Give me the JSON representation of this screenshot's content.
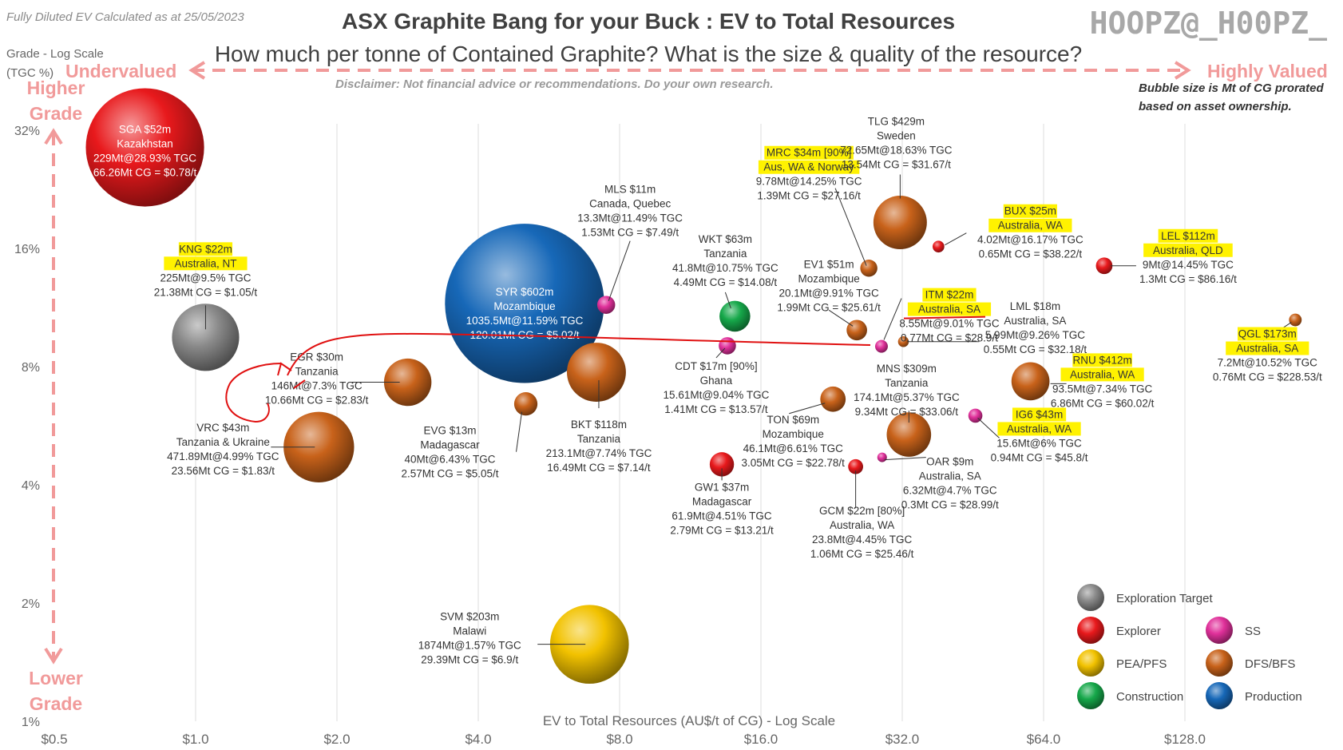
{
  "header": {
    "fd_note": "Fully Diluted EV Calculated as at 25/05/2023",
    "title": "ASX Graphite Bang for your Buck : EV to Total Resources",
    "subtitle": "How much per tonne of Contained Graphite? What is the size & quality of the resource?",
    "handle": "HOOPZ@_H00PZ_",
    "disclaimer": "Disclaimer: Not financial advice or recommendations. Do your own research.",
    "bubble_note_1": "Bubble size is Mt of CG prorated",
    "bubble_note_2": "based on asset ownership."
  },
  "guides": {
    "undervalued": "Undervalued",
    "highly_valued": "Highly Valued",
    "higher_grade_1": "Higher",
    "higher_grade_2": "Grade",
    "lower_grade_1": "Lower",
    "lower_grade_2": "Grade"
  },
  "colors": {
    "Exploration Target": "#8a8a8a",
    "Explorer": "#e8191c",
    "PEA/PFS": "#f2c200",
    "Construction": "#16a84a",
    "SS": "#e0309a",
    "DFS/BFS": "#c8621a",
    "Production": "#1768b8",
    "guide": "#f19a9a",
    "highlight": "#fff200",
    "annotation": "#e01010"
  },
  "chart_data": {
    "type": "scatter",
    "title": "ASX Graphite Bang for your Buck : EV to Total Resources",
    "xlabel": "EV to Total Resources (AU$/t of CG) - Log Scale",
    "ylabel": "Grade - Log Scale (TGC %)",
    "ylabel_1": "Grade - Log Scale",
    "ylabel_2": "(TGC %)",
    "x_scale": "log2",
    "y_scale": "log2",
    "xlim": [
      0.5,
      220
    ],
    "ylim": [
      1,
      38
    ],
    "x_ticks": [
      0.5,
      1,
      2,
      4,
      8,
      16,
      32,
      64,
      128
    ],
    "x_tick_labels": [
      "$0.5",
      "$1.0",
      "$2.0",
      "$4.0",
      "$8.0",
      "$16.0",
      "$32.0",
      "$64.0",
      "$128.0"
    ],
    "y_ticks": [
      1,
      2,
      4,
      8,
      16,
      32
    ],
    "y_tick_labels": [
      "1%",
      "2%",
      "4%",
      "8%",
      "16%",
      "32%"
    ],
    "grid": "vertical",
    "bubble_size": "Mt of contained graphite, prorated",
    "legend": {
      "position": "bottom-right",
      "entries": [
        "Exploration Target",
        "Explorer",
        "PEA/PFS",
        "Construction",
        "SS",
        "DFS/BFS",
        "Production"
      ]
    },
    "points": [
      {
        "id": "SGA",
        "x": 0.78,
        "y": 28.93,
        "size": 66.26,
        "stage": "Explorer",
        "label": [
          "SGA $52m",
          "Kazakhstan",
          "229Mt@28.93% TGC",
          "66.26Mt CG = $0.78/t"
        ]
      },
      {
        "id": "KNG",
        "x": 1.05,
        "y": 9.5,
        "size": 21.38,
        "stage": "Exploration Target",
        "label": [
          "KNG $22m",
          "Australia, NT",
          "225Mt@9.5% TGC",
          "21.38Mt CG = $1.05/t"
        ],
        "highlight": [
          0,
          1
        ]
      },
      {
        "id": "VRC",
        "x": 1.83,
        "y": 4.99,
        "size": 23.56,
        "stage": "DFS/BFS",
        "label": [
          "VRC $43m",
          "Tanzania & Ukraine",
          "471.89Mt@4.99% TGC",
          "23.56Mt CG = $1.83/t"
        ]
      },
      {
        "id": "EGR",
        "x": 2.83,
        "y": 7.3,
        "size": 10.66,
        "stage": "DFS/BFS",
        "label": [
          "EGR $30m",
          "Tanzania",
          "146Mt@7.3% TGC",
          "10.66Mt CG = $2.83/t"
        ]
      },
      {
        "id": "SYR",
        "x": 5.02,
        "y": 11.59,
        "size": 120.01,
        "stage": "Production",
        "label": [
          "SYR $602m",
          "Mozambique",
          "1035.5Mt@11.59% TGC",
          "120.01Mt CG = $5.02/t"
        ]
      },
      {
        "id": "EVG",
        "x": 5.05,
        "y": 6.43,
        "size": 2.57,
        "stage": "DFS/BFS",
        "label": [
          "EVG $13m",
          "Madagascar",
          "40Mt@6.43% TGC",
          "2.57Mt CG = $5.05/t"
        ]
      },
      {
        "id": "MLS",
        "x": 7.49,
        "y": 11.49,
        "size": 1.53,
        "stage": "SS",
        "label": [
          "MLS $11m",
          "Canada, Quebec",
          "13.3Mt@11.49% TGC",
          "1.53Mt CG = $7.49/t"
        ]
      },
      {
        "id": "BKT",
        "x": 7.14,
        "y": 7.74,
        "size": 16.49,
        "stage": "DFS/BFS",
        "label": [
          "BKT $118m",
          "Tanzania",
          "213.1Mt@7.74% TGC",
          "16.49Mt CG = $7.14/t"
        ]
      },
      {
        "id": "SVM",
        "x": 6.9,
        "y": 1.57,
        "size": 29.39,
        "stage": "PEA/PFS",
        "label": [
          "SVM $203m",
          "Malawi",
          "1874Mt@1.57% TGC",
          "29.39Mt CG = $6.9/t"
        ]
      },
      {
        "id": "GW1",
        "x": 13.21,
        "y": 4.51,
        "size": 2.79,
        "stage": "Explorer",
        "label": [
          "GW1 $37m",
          "Madagascar",
          "61.9Mt@4.51% TGC",
          "2.79Mt CG = $13.21/t"
        ]
      },
      {
        "id": "CDT",
        "x": 13.57,
        "y": 9.04,
        "size": 1.41,
        "stage": "SS",
        "label": [
          "CDT $17m [90%]",
          "Ghana",
          "15.61Mt@9.04% TGC",
          "1.41Mt CG = $13.57/t"
        ]
      },
      {
        "id": "WKT",
        "x": 14.08,
        "y": 10.75,
        "size": 4.49,
        "stage": "Construction",
        "label": [
          "WKT $63m",
          "Tanzania",
          "41.8Mt@10.75% TGC",
          "4.49Mt CG = $14.08/t"
        ]
      },
      {
        "id": "TON",
        "x": 22.78,
        "y": 6.61,
        "size": 3.05,
        "stage": "DFS/BFS",
        "label": [
          "TON $69m",
          "Mozambique",
          "46.1Mt@6.61% TGC",
          "3.05Mt CG = $22.78/t"
        ]
      },
      {
        "id": "GCM",
        "x": 25.46,
        "y": 4.45,
        "size": 1.06,
        "stage": "Explorer",
        "label": [
          "GCM $22m [80%]",
          "Australia, WA",
          "23.8Mt@4.45% TGC",
          "1.06Mt CG = $25.46/t"
        ]
      },
      {
        "id": "EV1",
        "x": 25.61,
        "y": 9.91,
        "size": 1.99,
        "stage": "DFS/BFS",
        "label": [
          "EV1 $51m",
          "Mozambique",
          "20.1Mt@9.91% TGC",
          "1.99Mt CG = $25.61/t"
        ]
      },
      {
        "id": "MRC",
        "x": 27.16,
        "y": 14.25,
        "size": 1.39,
        "stage": "DFS/BFS",
        "label": [
          "MRC $34m [90%]",
          "Aus, WA & Norway",
          "9.78Mt@14.25% TGC",
          "1.39Mt CG = $27.16/t"
        ],
        "highlight": [
          0,
          1
        ]
      },
      {
        "id": "ITM",
        "x": 28.9,
        "y": 9.01,
        "size": 0.77,
        "stage": "SS",
        "label": [
          "ITM $22m",
          "Australia, SA",
          "8.55Mt@9.01% TGC",
          "0.77Mt CG = $28.9/t"
        ],
        "highlight": [
          0,
          1
        ]
      },
      {
        "id": "OAR",
        "x": 28.99,
        "y": 4.7,
        "size": 0.3,
        "stage": "SS",
        "label": [
          "OAR $9m",
          "Australia, SA",
          "6.32Mt@4.7% TGC",
          "0.3Mt CG = $28.99/t"
        ]
      },
      {
        "id": "TLG",
        "x": 31.67,
        "y": 18.63,
        "size": 13.54,
        "stage": "DFS/BFS",
        "label": [
          "TLG $429m",
          "Sweden",
          "72.65Mt@18.63% TGC",
          "13.54Mt CG = $31.67/t"
        ]
      },
      {
        "id": "LML",
        "x": 32.18,
        "y": 9.26,
        "size": 0.55,
        "stage": "DFS/BFS",
        "label": [
          "LML $18m",
          "Australia, SA",
          "5.99Mt@9.26% TGC",
          "0.55Mt CG = $32.18/t"
        ]
      },
      {
        "id": "MNS",
        "x": 33.06,
        "y": 5.37,
        "size": 9.34,
        "stage": "DFS/BFS",
        "label": [
          "MNS $309m",
          "Tanzania",
          "174.1Mt@5.37% TGC",
          "9.34Mt CG = $33.06/t"
        ]
      },
      {
        "id": "BUX",
        "x": 38.22,
        "y": 16.17,
        "size": 0.65,
        "stage": "Explorer",
        "label": [
          "BUX $25m",
          "Australia, WA",
          "4.02Mt@16.17% TGC",
          "0.65Mt CG = $38.22/t"
        ],
        "highlight": [
          0,
          1
        ]
      },
      {
        "id": "IG6",
        "x": 45.8,
        "y": 6.0,
        "size": 0.94,
        "stage": "SS",
        "label": [
          "IG6 $43m",
          "Australia, WA",
          "15.6Mt@6% TGC",
          "0.94Mt CG = $45.8/t"
        ],
        "highlight": [
          0,
          1
        ]
      },
      {
        "id": "RNU",
        "x": 60.02,
        "y": 7.34,
        "size": 6.86,
        "stage": "DFS/BFS",
        "label": [
          "RNU $412m",
          "Australia, WA",
          "93.5Mt@7.34% TGC",
          "6.86Mt CG = $60.02/t"
        ],
        "highlight": [
          0,
          1
        ]
      },
      {
        "id": "LEL",
        "x": 86.16,
        "y": 14.45,
        "size": 1.3,
        "stage": "Explorer",
        "label": [
          "LEL $112m",
          "Australia, QLD",
          "9Mt@14.45% TGC",
          "1.3Mt CG = $86.16/t"
        ],
        "highlight": [
          0,
          1
        ]
      },
      {
        "id": "QGL",
        "x": 228.53,
        "y": 10.52,
        "size": 0.76,
        "stage": "DFS/BFS",
        "label": [
          "QGL $173m",
          "Australia, SA",
          "7.2Mt@10.52% TGC",
          "0.76Mt CG = $228.53/t"
        ],
        "highlight": [
          0,
          1
        ]
      }
    ]
  }
}
